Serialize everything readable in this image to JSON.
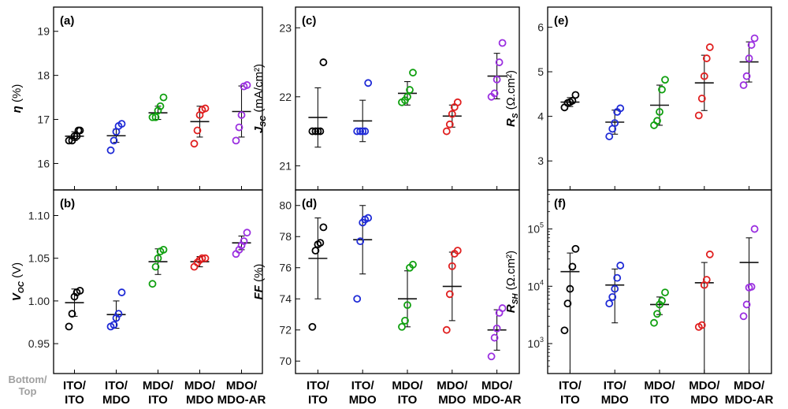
{
  "corner_label": {
    "line1": "Bottom/",
    "line2": "Top"
  },
  "categories": [
    {
      "line1": "ITO/",
      "line2": "ITO"
    },
    {
      "line1": "ITO/",
      "line2": "MDO"
    },
    {
      "line1": "MDO/",
      "line2": "ITO"
    },
    {
      "line1": "MDO/",
      "line2": "MDO"
    },
    {
      "line1": "MDO/",
      "line2": "MDO-AR"
    }
  ],
  "colors": [
    "#000000",
    "#1f2bd6",
    "#10a010",
    "#e02020",
    "#9b30e0"
  ],
  "chart_data": [
    {
      "id": "a",
      "panel_label": "(a)",
      "type": "scatter",
      "ylabel_base": "η",
      "ylabel_sub": "",
      "ylabel_suffix": " (%)",
      "yscale": "linear",
      "ylim": [
        15.4,
        19.55
      ],
      "yticks": [
        16,
        17,
        18,
        19
      ],
      "ytick_labels": [
        "16",
        "17",
        "18",
        "19"
      ],
      "series": [
        {
          "name": "ITO/ITO",
          "points": [
            16.52,
            16.52,
            16.62,
            16.62,
            16.75,
            16.75
          ],
          "mean": 16.62,
          "err": 0.1
        },
        {
          "name": "ITO/MDO",
          "points": [
            16.3,
            16.52,
            16.72,
            16.85,
            16.9
          ],
          "mean": 16.63,
          "err": 0.15
        },
        {
          "name": "MDO/ITO",
          "points": [
            17.05,
            17.05,
            17.2,
            17.3,
            17.5
          ],
          "mean": 17.15,
          "err": 0.15
        },
        {
          "name": "MDO/MDO",
          "points": [
            16.45,
            16.75,
            17.1,
            17.22,
            17.25
          ],
          "mean": 16.95,
          "err": 0.35
        },
        {
          "name": "MDO/MDO-AR",
          "points": [
            16.52,
            16.82,
            17.1,
            17.75,
            17.78
          ],
          "mean": 17.18,
          "err": 0.58
        }
      ]
    },
    {
      "id": "b",
      "panel_label": "(b)",
      "type": "scatter",
      "ylabel_base": "V",
      "ylabel_sub": "OC",
      "ylabel_suffix": " (V)",
      "yscale": "linear",
      "ylim": [
        0.915,
        1.13
      ],
      "yticks": [
        0.95,
        1.0,
        1.05,
        1.1
      ],
      "ytick_labels": [
        "0.95",
        "1.00",
        "1.05",
        "1.10"
      ],
      "series": [
        {
          "name": "ITO/ITO",
          "points": [
            0.97,
            0.985,
            1.005,
            1.01,
            1.012
          ],
          "mean": 0.998,
          "err": 0.016
        },
        {
          "name": "ITO/MDO",
          "points": [
            0.97,
            0.972,
            0.98,
            0.985,
            1.01
          ],
          "mean": 0.984,
          "err": 0.016
        },
        {
          "name": "MDO/ITO",
          "points": [
            1.02,
            1.04,
            1.05,
            1.058,
            1.06
          ],
          "mean": 1.046,
          "err": 0.015
        },
        {
          "name": "MDO/MDO",
          "points": [
            1.04,
            1.045,
            1.048,
            1.05,
            1.05
          ],
          "mean": 1.046,
          "err": 0.006
        },
        {
          "name": "MDO/MDO-AR",
          "points": [
            1.055,
            1.06,
            1.065,
            1.07,
            1.08
          ],
          "mean": 1.068,
          "err": 0.008
        }
      ]
    },
    {
      "id": "c",
      "panel_label": "(c)",
      "type": "scatter",
      "ylabel_base": "J",
      "ylabel_sub": "SC",
      "ylabel_suffix": " (mA/cm²)",
      "yscale": "linear",
      "ylim": [
        20.65,
        23.3
      ],
      "yticks": [
        21,
        22,
        23
      ],
      "ytick_labels": [
        "21",
        "22",
        "23"
      ],
      "series": [
        {
          "name": "ITO/ITO",
          "points": [
            21.5,
            21.5,
            21.5,
            21.5,
            22.5
          ],
          "mean": 21.7,
          "err": 0.43
        },
        {
          "name": "ITO/MDO",
          "points": [
            21.5,
            21.5,
            21.5,
            21.5,
            22.2
          ],
          "mean": 21.65,
          "err": 0.3
        },
        {
          "name": "MDO/ITO",
          "points": [
            21.92,
            21.95,
            22.0,
            22.1,
            22.35
          ],
          "mean": 22.05,
          "err": 0.17
        },
        {
          "name": "MDO/MDO",
          "points": [
            21.5,
            21.6,
            21.75,
            21.85,
            21.92
          ],
          "mean": 21.72,
          "err": 0.16
        },
        {
          "name": "MDO/MDO-AR",
          "points": [
            22.0,
            22.05,
            22.25,
            22.5,
            22.78
          ],
          "mean": 22.3,
          "err": 0.33
        }
      ]
    },
    {
      "id": "d",
      "panel_label": "(d)",
      "type": "scatter",
      "ylabel_base": "FF",
      "ylabel_sub": "",
      "ylabel_suffix": " (%)",
      "yscale": "linear",
      "ylim": [
        69.2,
        81.0
      ],
      "yticks": [
        70,
        72,
        74,
        76,
        78,
        80
      ],
      "ytick_labels": [
        "70",
        "72",
        "74",
        "76",
        "78",
        "80"
      ],
      "series": [
        {
          "name": "ITO/ITO",
          "points": [
            72.2,
            77.1,
            77.5,
            77.6,
            78.6
          ],
          "mean": 76.6,
          "err": 2.6
        },
        {
          "name": "ITO/MDO",
          "points": [
            74.0,
            77.7,
            78.9,
            79.1,
            79.2
          ],
          "mean": 77.8,
          "err": 2.2
        },
        {
          "name": "MDO/ITO",
          "points": [
            72.2,
            72.6,
            73.6,
            76.0,
            76.2
          ],
          "mean": 74.0,
          "err": 1.8
        },
        {
          "name": "MDO/MDO",
          "points": [
            72.0,
            74.3,
            76.1,
            76.9,
            77.1
          ],
          "mean": 74.8,
          "err": 2.2
        },
        {
          "name": "MDO/MDO-AR",
          "points": [
            70.3,
            71.5,
            72.1,
            73.1,
            73.4
          ],
          "mean": 72.0,
          "err": 1.3
        }
      ]
    },
    {
      "id": "e",
      "panel_label": "(e)",
      "type": "scatter",
      "ylabel_base": "R",
      "ylabel_sub": "S",
      "ylabel_suffix": " (Ω.cm²)",
      "yscale": "linear",
      "ylim": [
        2.35,
        6.45
      ],
      "yticks": [
        3,
        4,
        5,
        6
      ],
      "ytick_labels": [
        "3",
        "4",
        "5",
        "6"
      ],
      "series": [
        {
          "name": "ITO/ITO",
          "points": [
            4.2,
            4.3,
            4.32,
            4.35,
            4.48
          ],
          "mean": 4.32,
          "err": 0.1
        },
        {
          "name": "ITO/MDO",
          "points": [
            3.55,
            3.72,
            3.85,
            4.1,
            4.18
          ],
          "mean": 3.87,
          "err": 0.27
        },
        {
          "name": "MDO/ITO",
          "points": [
            3.8,
            3.9,
            4.1,
            4.6,
            4.82
          ],
          "mean": 4.25,
          "err": 0.45
        },
        {
          "name": "MDO/MDO",
          "points": [
            4.02,
            4.4,
            4.9,
            5.3,
            5.55
          ],
          "mean": 4.75,
          "err": 0.62
        },
        {
          "name": "MDO/MDO-AR",
          "points": [
            4.7,
            4.9,
            5.3,
            5.6,
            5.75
          ],
          "mean": 5.22,
          "err": 0.45
        }
      ]
    },
    {
      "id": "f",
      "panel_label": "(f)",
      "type": "scatter",
      "ylabel_base": "R",
      "ylabel_sub": "SH",
      "ylabel_suffix": " (Ω.cm²)",
      "yscale": "log",
      "ylim": [
        300,
        480000
      ],
      "yticks": [
        1000,
        10000,
        100000
      ],
      "ytick_base": "10",
      "ytick_exps": [
        "3",
        "4",
        "5"
      ],
      "series": [
        {
          "name": "ITO/ITO",
          "points": [
            1700,
            5000,
            9000,
            22000,
            45000
          ],
          "mean": 18000,
          "low": 300,
          "high": 38000
        },
        {
          "name": "ITO/MDO",
          "points": [
            5000,
            6500,
            9000,
            14000,
            23000
          ],
          "mean": 10500,
          "low": 2300,
          "high": 20000
        },
        {
          "name": "MDO/ITO",
          "points": [
            2300,
            3300,
            4800,
            5600,
            7800
          ],
          "mean": 4800,
          "low": 3200,
          "high": 6500
        },
        {
          "name": "MDO/MDO",
          "points": [
            1950,
            2100,
            10500,
            13000,
            36000
          ],
          "mean": 11500,
          "low": 300,
          "high": 26000
        },
        {
          "name": "MDO/MDO-AR",
          "points": [
            3000,
            4800,
            9500,
            9800,
            100000
          ],
          "mean": 26000,
          "low": 300,
          "high": 70000
        }
      ]
    }
  ]
}
